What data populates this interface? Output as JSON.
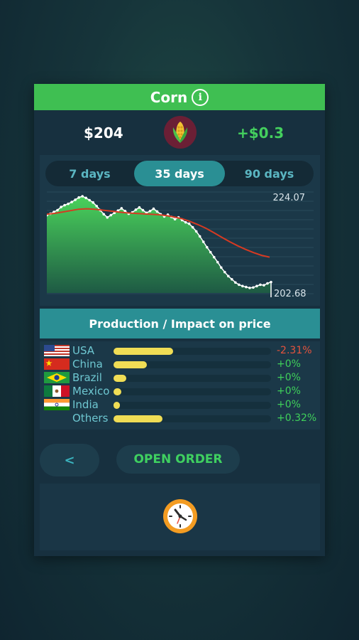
{
  "card": {
    "title": "Corn",
    "price": "$204",
    "change": "+$0.3",
    "icons": {
      "info": "info-icon",
      "commodity": "corn-icon",
      "clock": "clock-icon"
    },
    "colors": {
      "title_bar": "#3fbf52",
      "positive": "#44d05e",
      "negative": "#e5533d",
      "accent": "#2a8f94",
      "bar": "#f0dd55"
    }
  },
  "tabs": [
    {
      "label": "7 days",
      "active": false
    },
    {
      "label": "35 days",
      "active": true
    },
    {
      "label": "90 days",
      "active": false
    }
  ],
  "chart_data": {
    "type": "area",
    "max_label": "224.07",
    "min_label": "202.68",
    "ylim": [
      202.68,
      224.07
    ],
    "series": [
      {
        "type": "area",
        "values": [
          219.9,
          220.2,
          220.6,
          221.0,
          221.7,
          222.1,
          222.4,
          222.8,
          223.3,
          223.8,
          224.07,
          223.7,
          223.2,
          222.7,
          221.9,
          221.0,
          220.1,
          219.4,
          219.9,
          220.4,
          220.9,
          221.4,
          220.8,
          220.2,
          220.5,
          221.1,
          221.6,
          221.0,
          220.4,
          220.8,
          221.3,
          220.7,
          220.1,
          219.6,
          220.0,
          219.5,
          219.0,
          219.4,
          218.8,
          218.3,
          218.0,
          217.2,
          216.3,
          215.2,
          214.0,
          212.8,
          211.7,
          210.6,
          209.5,
          208.3,
          207.3,
          206.4,
          205.7,
          205.0,
          204.5,
          204.2,
          204.0,
          203.8,
          203.9,
          204.2,
          204.5,
          204.4,
          204.8,
          205.1
        ]
      },
      {
        "type": "line",
        "values": [
          220.1,
          220.3,
          220.6,
          220.9,
          221.2,
          221.3,
          221.2,
          221.0,
          220.8,
          220.6,
          220.4,
          220.3,
          220.2,
          220.1,
          220.0,
          219.8,
          219.5,
          219.1,
          218.5,
          217.8,
          217.0,
          216.0,
          215.0,
          214.0,
          213.1,
          212.3,
          211.6,
          211.0,
          210.6
        ]
      }
    ]
  },
  "production": {
    "title": "Production / Impact on price",
    "rows": [
      {
        "country": "USA",
        "share": 0.38,
        "impact": "-2.31%",
        "negative": true
      },
      {
        "country": "China",
        "share": 0.21,
        "impact": "+0%",
        "negative": false
      },
      {
        "country": "Brazil",
        "share": 0.08,
        "impact": "+0%",
        "negative": false
      },
      {
        "country": "Mexico",
        "share": 0.05,
        "impact": "+0%",
        "negative": false
      },
      {
        "country": "India",
        "share": 0.04,
        "impact": "+0%",
        "negative": false
      },
      {
        "country": "Others",
        "share": 0.31,
        "impact": "+0.32%",
        "negative": false
      }
    ]
  },
  "actions": {
    "back_label": "<",
    "open_order_label": "OPEN ORDER"
  }
}
